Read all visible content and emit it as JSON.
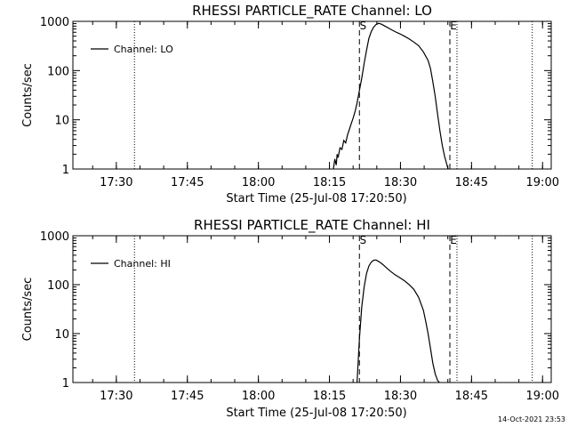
{
  "chart_data": [
    {
      "type": "line",
      "title": "RHESSI PARTICLE_RATE Channel: LO",
      "xlabel": "Start Time (25-Jul-08 17:20:50)",
      "ylabel": "Counts/sec",
      "y_scale": "log",
      "ylim": [
        1,
        1000
      ],
      "x_unit": "minutes after 17:20:50",
      "xlim": [
        0,
        101
      ],
      "x_ticks": [
        {
          "label": "17:30",
          "value": 9.17
        },
        {
          "label": "17:45",
          "value": 24.17
        },
        {
          "label": "18:00",
          "value": 39.17
        },
        {
          "label": "18:15",
          "value": 54.17
        },
        {
          "label": "18:30",
          "value": 69.17
        },
        {
          "label": "18:45",
          "value": 84.17
        },
        {
          "label": "19:00",
          "value": 99.17
        }
      ],
      "y_ticks": [
        {
          "label": "1",
          "value": 1
        },
        {
          "label": "10",
          "value": 10
        },
        {
          "label": "100",
          "value": 100
        },
        {
          "label": "1000",
          "value": 1000
        }
      ],
      "legend": {
        "entries": [
          "Channel: LO"
        ],
        "position": "top-left"
      },
      "markers": [
        {
          "label": "S",
          "style": "dashed",
          "x": 60.5
        },
        {
          "label": "E",
          "style": "dashed",
          "x": 79.6
        }
      ],
      "dotted_lines_x": [
        13.0,
        81.1,
        97.0
      ],
      "series": [
        {
          "name": "Channel: LO",
          "x": [
            55.0,
            55.3,
            55.6,
            55.8,
            56.0,
            56.4,
            56.8,
            57.2,
            57.6,
            58.0,
            58.4,
            58.8,
            59.2,
            59.6,
            60.0,
            60.5,
            61.0,
            61.5,
            62.0,
            62.5,
            63.0,
            63.5,
            64.0,
            64.5,
            65.0,
            65.5,
            66.0,
            67.0,
            68.0,
            69.0,
            70.0,
            71.0,
            72.0,
            73.0,
            74.0,
            75.0,
            75.5,
            76.0,
            76.5,
            77.0,
            77.5,
            78.0,
            78.5,
            79.0,
            79.2
          ],
          "y": [
            1,
            1.6,
            1.2,
            2.0,
            1.7,
            2.7,
            2.5,
            3.8,
            3.4,
            5.0,
            6.5,
            8.5,
            11,
            15,
            22,
            40,
            70,
            140,
            260,
            450,
            620,
            760,
            860,
            910,
            890,
            840,
            790,
            700,
            620,
            560,
            500,
            440,
            380,
            320,
            240,
            160,
            110,
            60,
            30,
            13,
            6,
            3,
            1.8,
            1.2,
            1
          ]
        }
      ]
    },
    {
      "type": "line",
      "title": "RHESSI PARTICLE_RATE Channel: HI",
      "xlabel": "Start Time (25-Jul-08 17:20:50)",
      "ylabel": "Counts/sec",
      "y_scale": "log",
      "ylim": [
        1,
        1000
      ],
      "x_unit": "minutes after 17:20:50",
      "xlim": [
        0,
        101
      ],
      "x_ticks": [
        {
          "label": "17:30",
          "value": 9.17
        },
        {
          "label": "17:45",
          "value": 24.17
        },
        {
          "label": "18:00",
          "value": 39.17
        },
        {
          "label": "18:15",
          "value": 54.17
        },
        {
          "label": "18:30",
          "value": 69.17
        },
        {
          "label": "18:45",
          "value": 84.17
        },
        {
          "label": "19:00",
          "value": 99.17
        }
      ],
      "y_ticks": [
        {
          "label": "1",
          "value": 1
        },
        {
          "label": "10",
          "value": 10
        },
        {
          "label": "100",
          "value": 100
        },
        {
          "label": "1000",
          "value": 1000
        }
      ],
      "legend": {
        "entries": [
          "Channel: HI"
        ],
        "position": "top-left"
      },
      "markers": [
        {
          "label": "S",
          "style": "dashed",
          "x": 60.5
        },
        {
          "label": "E",
          "style": "dashed",
          "x": 79.6
        }
      ],
      "dotted_lines_x": [
        13.0,
        81.1,
        97.0
      ],
      "series": [
        {
          "name": "Channel: HI",
          "x": [
            60.0,
            60.5,
            61.0,
            61.5,
            62.0,
            62.5,
            63.0,
            63.5,
            64.0,
            64.5,
            65.0,
            65.5,
            66.0,
            67.0,
            68.0,
            69.0,
            70.0,
            71.0,
            72.0,
            73.0,
            74.0,
            74.5,
            75.0,
            75.5,
            76.0,
            76.5,
            77.0,
            77.4
          ],
          "y": [
            1,
            8,
            35,
            90,
            170,
            240,
            290,
            315,
            320,
            300,
            280,
            255,
            230,
            190,
            160,
            140,
            120,
            100,
            80,
            55,
            30,
            18,
            10,
            5,
            2.5,
            1.5,
            1.1,
            1
          ]
        }
      ]
    }
  ],
  "footer": {
    "timestamp": "14-Oct-2021 23:53"
  }
}
